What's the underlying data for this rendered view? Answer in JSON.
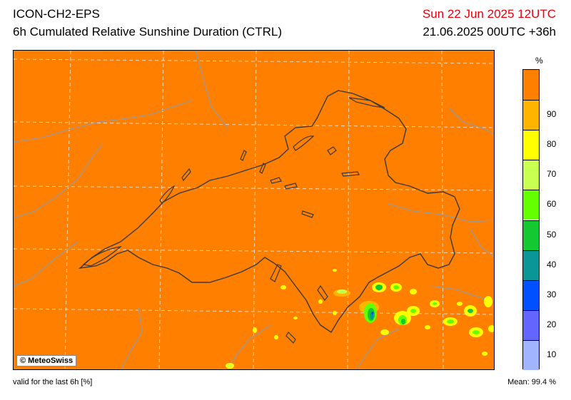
{
  "header": {
    "model": "ICON-CH2-EPS",
    "product": "6h Cumulated Relative Sunshine Duration (CTRL)",
    "valid_time": "Sun 22 Jun 2025 12UTC",
    "run_time": "21.06.2025 00UTC +36h"
  },
  "map": {
    "copyright": "© MeteoSwiss",
    "background_color": "#ff7f00"
  },
  "legend": {
    "unit": "%",
    "classes": [
      {
        "color": "#ff7f00",
        "label": ""
      },
      {
        "color": "#ffb400",
        "label": "90"
      },
      {
        "color": "#ffff00",
        "label": "80"
      },
      {
        "color": "#c8ff50",
        "label": "70"
      },
      {
        "color": "#64ff00",
        "label": "60"
      },
      {
        "color": "#14c832",
        "label": "50"
      },
      {
        "color": "#0a9696",
        "label": "40"
      },
      {
        "color": "#0050ff",
        "label": "30"
      },
      {
        "color": "#6464ff",
        "label": "20"
      },
      {
        "color": "#a0b4ff",
        "label": "10"
      }
    ]
  },
  "footer": {
    "note": "valid for the last 6h [%]",
    "mean": "Mean:  99.4 %"
  }
}
